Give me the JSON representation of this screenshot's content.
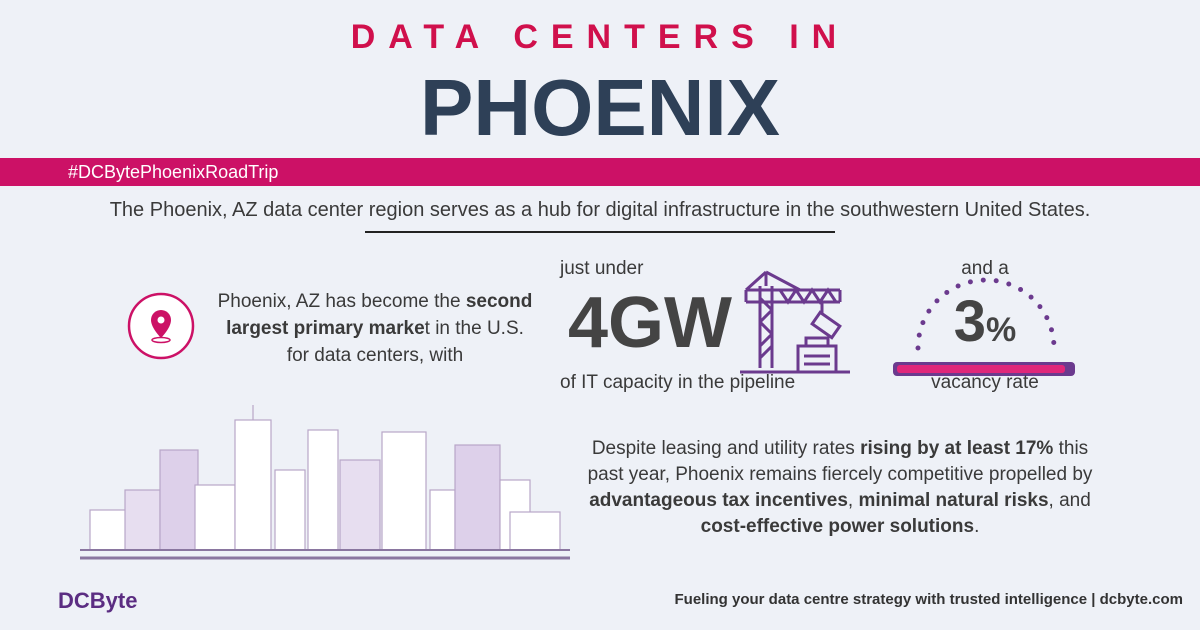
{
  "header": {
    "kicker": "DATA CENTERS IN",
    "title": "PHOENIX"
  },
  "banner": {
    "hashtag": "#DCBytePhoenixRoadTrip"
  },
  "intro": "The Phoenix, AZ data center region serves as a hub for digital infrastructure in the southwestern United States.",
  "market": {
    "segments": [
      {
        "text": "Phoenix, AZ has become the ",
        "bold": false
      },
      {
        "text": "second largest primary marke",
        "bold": true
      },
      {
        "text": "t in the U.S. for data centers, with",
        "bold": false
      }
    ]
  },
  "capacity": {
    "pre": "just under",
    "value": "4GW",
    "post": "of IT capacity in the pipeline"
  },
  "vacancy": {
    "pre": "and a",
    "value": "3",
    "unit": "%",
    "post": "vacancy rate"
  },
  "body": {
    "segments": [
      {
        "text": "Despite leasing and utility rates ",
        "bold": false
      },
      {
        "text": "rising by at least 17%",
        "bold": true
      },
      {
        "text": " this past year, Phoenix remains fiercely competitive propelled by ",
        "bold": false
      },
      {
        "text": "advantageous tax incentives",
        "bold": true
      },
      {
        "text": ", ",
        "bold": false
      },
      {
        "text": "minimal natural risks",
        "bold": true
      },
      {
        "text": ", and ",
        "bold": false
      },
      {
        "text": "cost-effective power solutions",
        "bold": true
      },
      {
        "text": ".",
        "bold": false
      }
    ]
  },
  "footer": {
    "logo": "DCByte",
    "tagline": "Fueling your data centre strategy with trusted intelligence | dcbyte.com"
  }
}
